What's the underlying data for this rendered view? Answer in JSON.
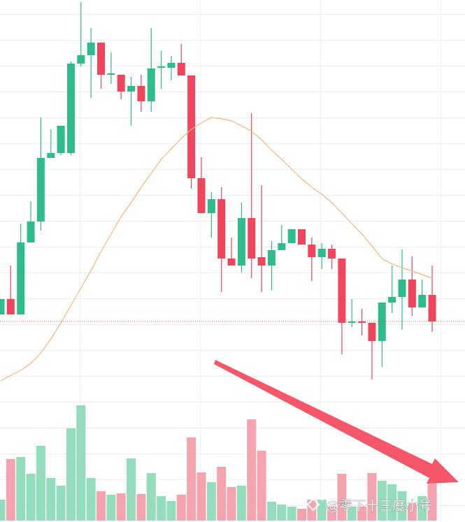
{
  "chart_data": {
    "type": "candlestick",
    "up_color": "#2ebd8a",
    "down_color": "#f0455d",
    "ylim": [
      0,
      560
    ],
    "open": [
      110,
      132,
      110,
      213,
      243,
      334,
      341,
      341,
      469,
      481,
      499,
      453,
      453,
      429,
      437,
      415,
      463,
      463,
      470,
      452,
      305,
      255,
      275,
      190,
      180,
      248,
      192,
      180,
      202,
      212,
      232,
      210,
      192,
      204,
      190,
      98,
      100,
      98,
      72,
      127,
      135,
      160,
      120,
      138
    ],
    "high": [
      132,
      180,
      240,
      272,
      392,
      375,
      380,
      472,
      557,
      520,
      499,
      485,
      453,
      450,
      453,
      520,
      487,
      480,
      497,
      452,
      335,
      285,
      292,
      220,
      270,
      398,
      295,
      215,
      238,
      232,
      232,
      220,
      212,
      210,
      190,
      132,
      118,
      98,
      127,
      180,
      203,
      193,
      160,
      180
    ],
    "low": [
      110,
      110,
      110,
      213,
      230,
      334,
      338,
      338,
      465,
      420,
      433,
      440,
      418,
      380,
      400,
      400,
      433,
      445,
      452,
      290,
      255,
      220,
      142,
      180,
      170,
      162,
      142,
      145,
      202,
      212,
      210,
      158,
      175,
      175,
      53,
      92,
      80,
      17,
      35,
      112,
      88,
      108,
      120,
      85
    ],
    "close": [
      132,
      110,
      213,
      243,
      334,
      341,
      380,
      469,
      481,
      499,
      453,
      455,
      429,
      437,
      415,
      462,
      465,
      470,
      452,
      305,
      255,
      275,
      190,
      180,
      248,
      190,
      180,
      202,
      212,
      232,
      210,
      192,
      204,
      190,
      98,
      100,
      98,
      72,
      127,
      135,
      160,
      120,
      138,
      100
    ],
    "ma": {
      "color": "#f5b87a",
      "values": [
        15,
        23,
        30,
        40,
        55,
        75,
        98,
        123,
        148,
        173,
        200,
        225,
        250,
        270,
        292,
        312,
        332,
        347,
        362,
        375,
        384,
        392,
        390,
        387,
        380,
        372,
        360,
        345,
        332,
        318,
        304,
        292,
        282,
        270,
        255,
        240,
        225,
        208,
        190,
        182,
        177,
        172,
        167,
        162
      ]
    },
    "volume": {
      "ylim": [
        0,
        170
      ],
      "up_color": "#93dcbc",
      "down_color": "#f6a3b0",
      "values": [
        30,
        88,
        91,
        67,
        107,
        61,
        50,
        132,
        165,
        61,
        42,
        37,
        39,
        89,
        38,
        68,
        35,
        28,
        37,
        119,
        69,
        55,
        77,
        48,
        50,
        145,
        100,
        27,
        23,
        20,
        17,
        30,
        30,
        20,
        67,
        20,
        20,
        68,
        57,
        52,
        42,
        25,
        35,
        55
      ]
    },
    "last_price_color": "#e8505b",
    "watermark": "@零下十三度小号"
  }
}
